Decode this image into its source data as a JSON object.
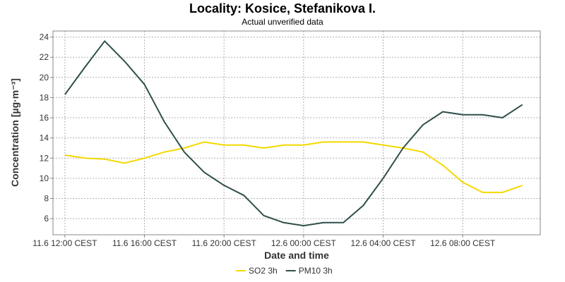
{
  "chart_data": {
    "type": "line",
    "title": "Locality: Kosice, Stefanikova I.",
    "subtitle": "Actual unverified data",
    "xlabel": "Date and time",
    "ylabel": "Concentration [µg·m⁻³]",
    "x_hours": [
      0,
      1,
      2,
      3,
      4,
      5,
      6,
      7,
      8,
      9,
      10,
      11,
      12,
      13,
      14,
      15,
      16,
      17,
      18,
      19,
      20,
      21,
      22,
      23
    ],
    "x_tick_hours": [
      0,
      4,
      8,
      12,
      16,
      20
    ],
    "x_tick_labels": [
      "11.6 12:00 CEST",
      "11.6 16:00 CEST",
      "11.6 20:00 CEST",
      "12.6 00:00 CEST",
      "12.6 04:00 CEST",
      "12.6 08:00 CEST"
    ],
    "xlim": [
      -0.6,
      23.9
    ],
    "ylim": [
      4.4,
      24.6
    ],
    "yticks": [
      6,
      8,
      10,
      12,
      14,
      16,
      18,
      20,
      22,
      24
    ],
    "grid": true,
    "legend_position": "bottom-center",
    "series": [
      {
        "name": "SO2 3h",
        "color": "#f5d800",
        "values": [
          12.3,
          12.0,
          11.9,
          11.5,
          12.0,
          12.6,
          13.0,
          13.6,
          13.3,
          13.3,
          13.0,
          13.3,
          13.3,
          13.6,
          13.6,
          13.6,
          13.3,
          13.0,
          12.6,
          11.3,
          9.6,
          8.6,
          8.6,
          9.3
        ]
      },
      {
        "name": "PM10 3h",
        "color": "#2f4f4a",
        "values": [
          18.3,
          21.0,
          23.6,
          21.6,
          19.3,
          15.6,
          12.6,
          10.6,
          9.3,
          8.3,
          6.3,
          5.6,
          5.3,
          5.6,
          5.6,
          7.3,
          10.0,
          13.0,
          15.3,
          16.6,
          16.3,
          16.3,
          16.0,
          17.3
        ]
      }
    ]
  }
}
